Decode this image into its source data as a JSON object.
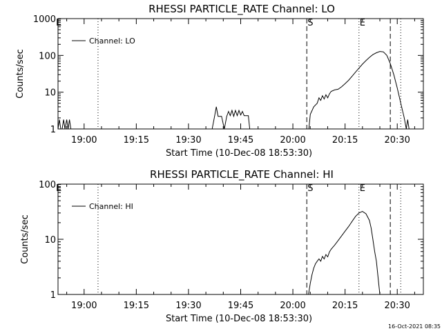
{
  "footer": {
    "timestamp": "16-Oct-2021 08:35"
  },
  "chart_data": [
    {
      "type": "line",
      "title": "RHESSI PARTICLE_RATE Channel: LO",
      "xlabel": "Start Time (10-Dec-08 18:53:30)",
      "ylabel": "Counts/sec",
      "yscale": "log",
      "ylim": [
        1,
        1000
      ],
      "xlim_minutes": [
        -7.5,
        97.5
      ],
      "x_ticks": [
        "19:00",
        "19:15",
        "19:30",
        "19:45",
        "20:00",
        "20:15",
        "20:30"
      ],
      "y_ticks": [
        "1",
        "10",
        "100",
        "1000"
      ],
      "legend": {
        "label": "Channel: LO",
        "position": "top-left"
      },
      "markers": [
        {
          "time": "19:04",
          "style": "dotted",
          "label": ""
        },
        {
          "time": "20:04",
          "style": "dashed",
          "label": "S"
        },
        {
          "time": "20:19",
          "style": "dotted",
          "label": "E"
        },
        {
          "time": "20:28",
          "style": "dashed",
          "label": ""
        },
        {
          "time": "20:31",
          "style": "dotted",
          "label": ""
        }
      ],
      "corner_label": "E",
      "series": [
        {
          "name": "Channel: LO",
          "points": [
            [
              -7.5,
              1
            ],
            [
              -7.1,
              1.8
            ],
            [
              -6.7,
              1
            ],
            [
              -6.3,
              1
            ],
            [
              -5.9,
              1.8
            ],
            [
              -5.5,
              1
            ],
            [
              -5.0,
              1.8
            ],
            [
              -4.6,
              1
            ],
            [
              -4.2,
              1.8
            ],
            [
              -3.8,
              1
            ],
            [
              -3.4,
              1
            ],
            [
              36.8,
              1
            ],
            [
              37.5,
              2.2
            ],
            [
              38.0,
              4.0
            ],
            [
              38.5,
              2.2
            ],
            [
              39.5,
              2.2
            ],
            [
              40.3,
              1
            ],
            [
              41.0,
              2.2
            ],
            [
              41.5,
              3.0
            ],
            [
              42.0,
              2.3
            ],
            [
              42.5,
              3.2
            ],
            [
              43.0,
              2.2
            ],
            [
              43.5,
              3.2
            ],
            [
              44.0,
              2.3
            ],
            [
              44.5,
              3.2
            ],
            [
              45.0,
              2.4
            ],
            [
              45.5,
              3.0
            ],
            [
              46.0,
              2.3
            ],
            [
              46.5,
              2.3
            ],
            [
              47.2,
              2.3
            ],
            [
              47.6,
              1
            ],
            [
              64.6,
              1
            ],
            [
              65.0,
              2.5
            ],
            [
              66.0,
              4.0
            ],
            [
              67.0,
              5.0
            ],
            [
              67.5,
              7.0
            ],
            [
              68.0,
              6.0
            ],
            [
              68.5,
              8.0
            ],
            [
              69.0,
              6.5
            ],
            [
              69.5,
              8.5
            ],
            [
              70.0,
              7.0
            ],
            [
              70.5,
              9.0
            ],
            [
              71.0,
              10.5
            ],
            [
              72.0,
              11.5
            ],
            [
              73.0,
              12.0
            ],
            [
              74.0,
              14.0
            ],
            [
              75.0,
              17.0
            ],
            [
              76.0,
              21.0
            ],
            [
              77.0,
              27.0
            ],
            [
              78.0,
              35.0
            ],
            [
              79.0,
              45.0
            ],
            [
              80.0,
              58.0
            ],
            [
              81.0,
              72.0
            ],
            [
              82.0,
              88.0
            ],
            [
              83.0,
              105.0
            ],
            [
              84.0,
              118.0
            ],
            [
              85.0,
              128.0
            ],
            [
              86.0,
              125.0
            ],
            [
              87.0,
              100.0
            ],
            [
              88.0,
              60.0
            ],
            [
              89.0,
              30.0
            ],
            [
              90.0,
              13.0
            ],
            [
              91.0,
              5.0
            ],
            [
              92.0,
              2.0
            ],
            [
              92.6,
              1.0
            ],
            [
              93.0,
              1.8
            ],
            [
              93.4,
              1.0
            ]
          ]
        }
      ]
    },
    {
      "type": "line",
      "title": "RHESSI PARTICLE_RATE Channel: HI",
      "xlabel": "Start Time (10-Dec-08 18:53:30)",
      "ylabel": "Counts/sec",
      "yscale": "log",
      "ylim": [
        1,
        100
      ],
      "xlim_minutes": [
        -7.5,
        97.5
      ],
      "x_ticks": [
        "19:00",
        "19:15",
        "19:30",
        "19:45",
        "20:00",
        "20:15",
        "20:30"
      ],
      "y_ticks": [
        "1",
        "10",
        "100"
      ],
      "legend": {
        "label": "Channel: HI",
        "position": "top-left"
      },
      "markers": [
        {
          "time": "19:04",
          "style": "dotted",
          "label": ""
        },
        {
          "time": "20:04",
          "style": "dashed",
          "label": "S"
        },
        {
          "time": "20:19",
          "style": "dotted",
          "label": "E"
        },
        {
          "time": "20:28",
          "style": "dashed",
          "label": ""
        },
        {
          "time": "20:31",
          "style": "dotted",
          "label": ""
        }
      ],
      "corner_label": "E",
      "series": [
        {
          "name": "Channel: HI",
          "points": [
            [
              64.5,
              1.0
            ],
            [
              65.0,
              1.6
            ],
            [
              65.5,
              2.3
            ],
            [
              66.0,
              3.0
            ],
            [
              66.5,
              3.6
            ],
            [
              67.0,
              4.0
            ],
            [
              67.5,
              4.4
            ],
            [
              68.0,
              4.0
            ],
            [
              68.5,
              4.9
            ],
            [
              69.0,
              4.4
            ],
            [
              69.5,
              5.3
            ],
            [
              70.0,
              4.8
            ],
            [
              70.5,
              5.9
            ],
            [
              71.0,
              6.6
            ],
            [
              71.5,
              7.2
            ],
            [
              72.0,
              7.8
            ],
            [
              73.0,
              9.5
            ],
            [
              74.0,
              11.5
            ],
            [
              75.0,
              14.0
            ],
            [
              76.0,
              17.0
            ],
            [
              77.0,
              21.0
            ],
            [
              78.0,
              26.0
            ],
            [
              79.0,
              30.0
            ],
            [
              80.0,
              32.0
            ],
            [
              81.0,
              29.0
            ],
            [
              82.0,
              22.0
            ],
            [
              82.5,
              16.0
            ],
            [
              83.0,
              10.0
            ],
            [
              83.5,
              6.0
            ],
            [
              84.0,
              4.0
            ],
            [
              84.5,
              2.0
            ],
            [
              85.0,
              1.0
            ]
          ]
        }
      ]
    }
  ]
}
